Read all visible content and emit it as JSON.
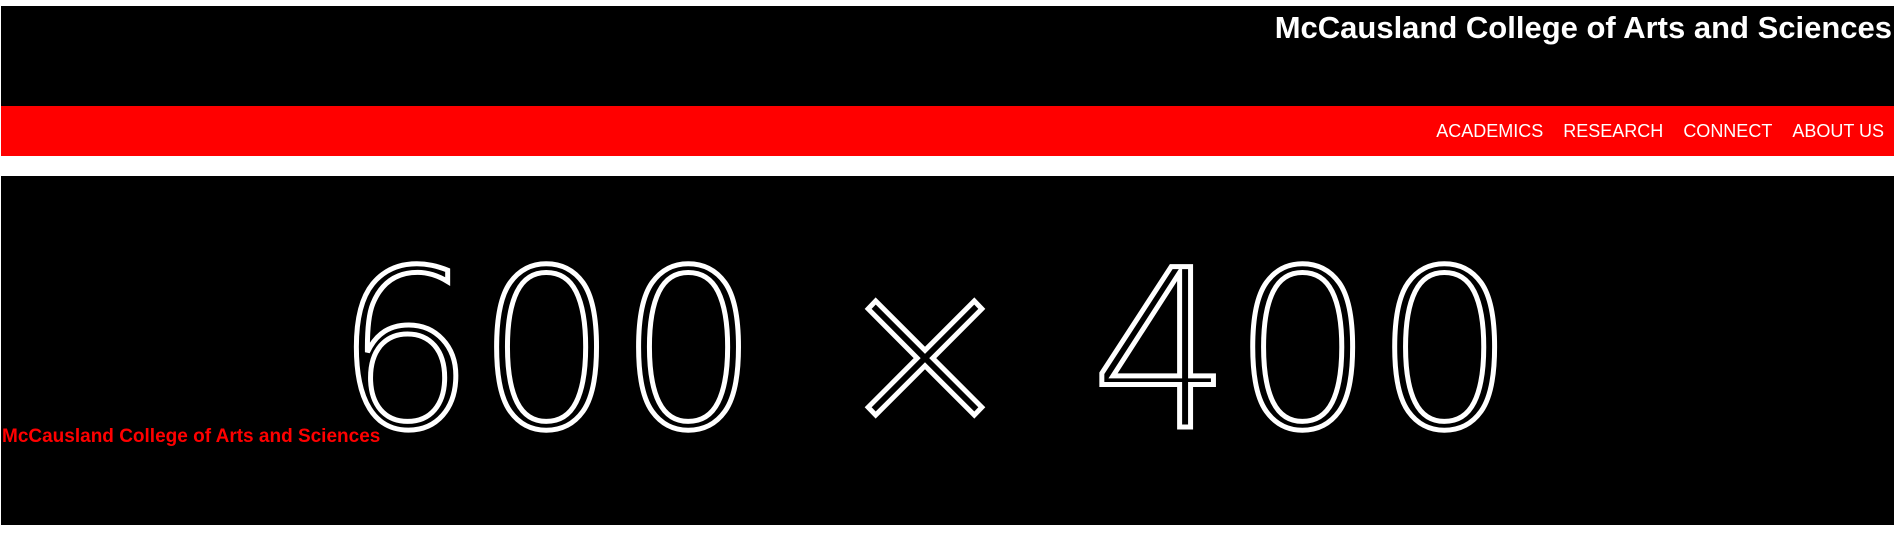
{
  "header": {
    "title": "McCausland College of Arts and Sciences"
  },
  "nav": {
    "items": [
      {
        "label": "ACADEMICS"
      },
      {
        "label": "RESEARCH"
      },
      {
        "label": "CONNECT"
      },
      {
        "label": "ABOUT US"
      }
    ]
  },
  "hero": {
    "placeholder_text": "600 × 400",
    "caption": "McCausland College of Arts and Sciences"
  },
  "colors": {
    "header_bg": "#000000",
    "nav_bg": "#ff0000",
    "nav_text": "#ffffff",
    "caption_text": "#ff0000"
  }
}
